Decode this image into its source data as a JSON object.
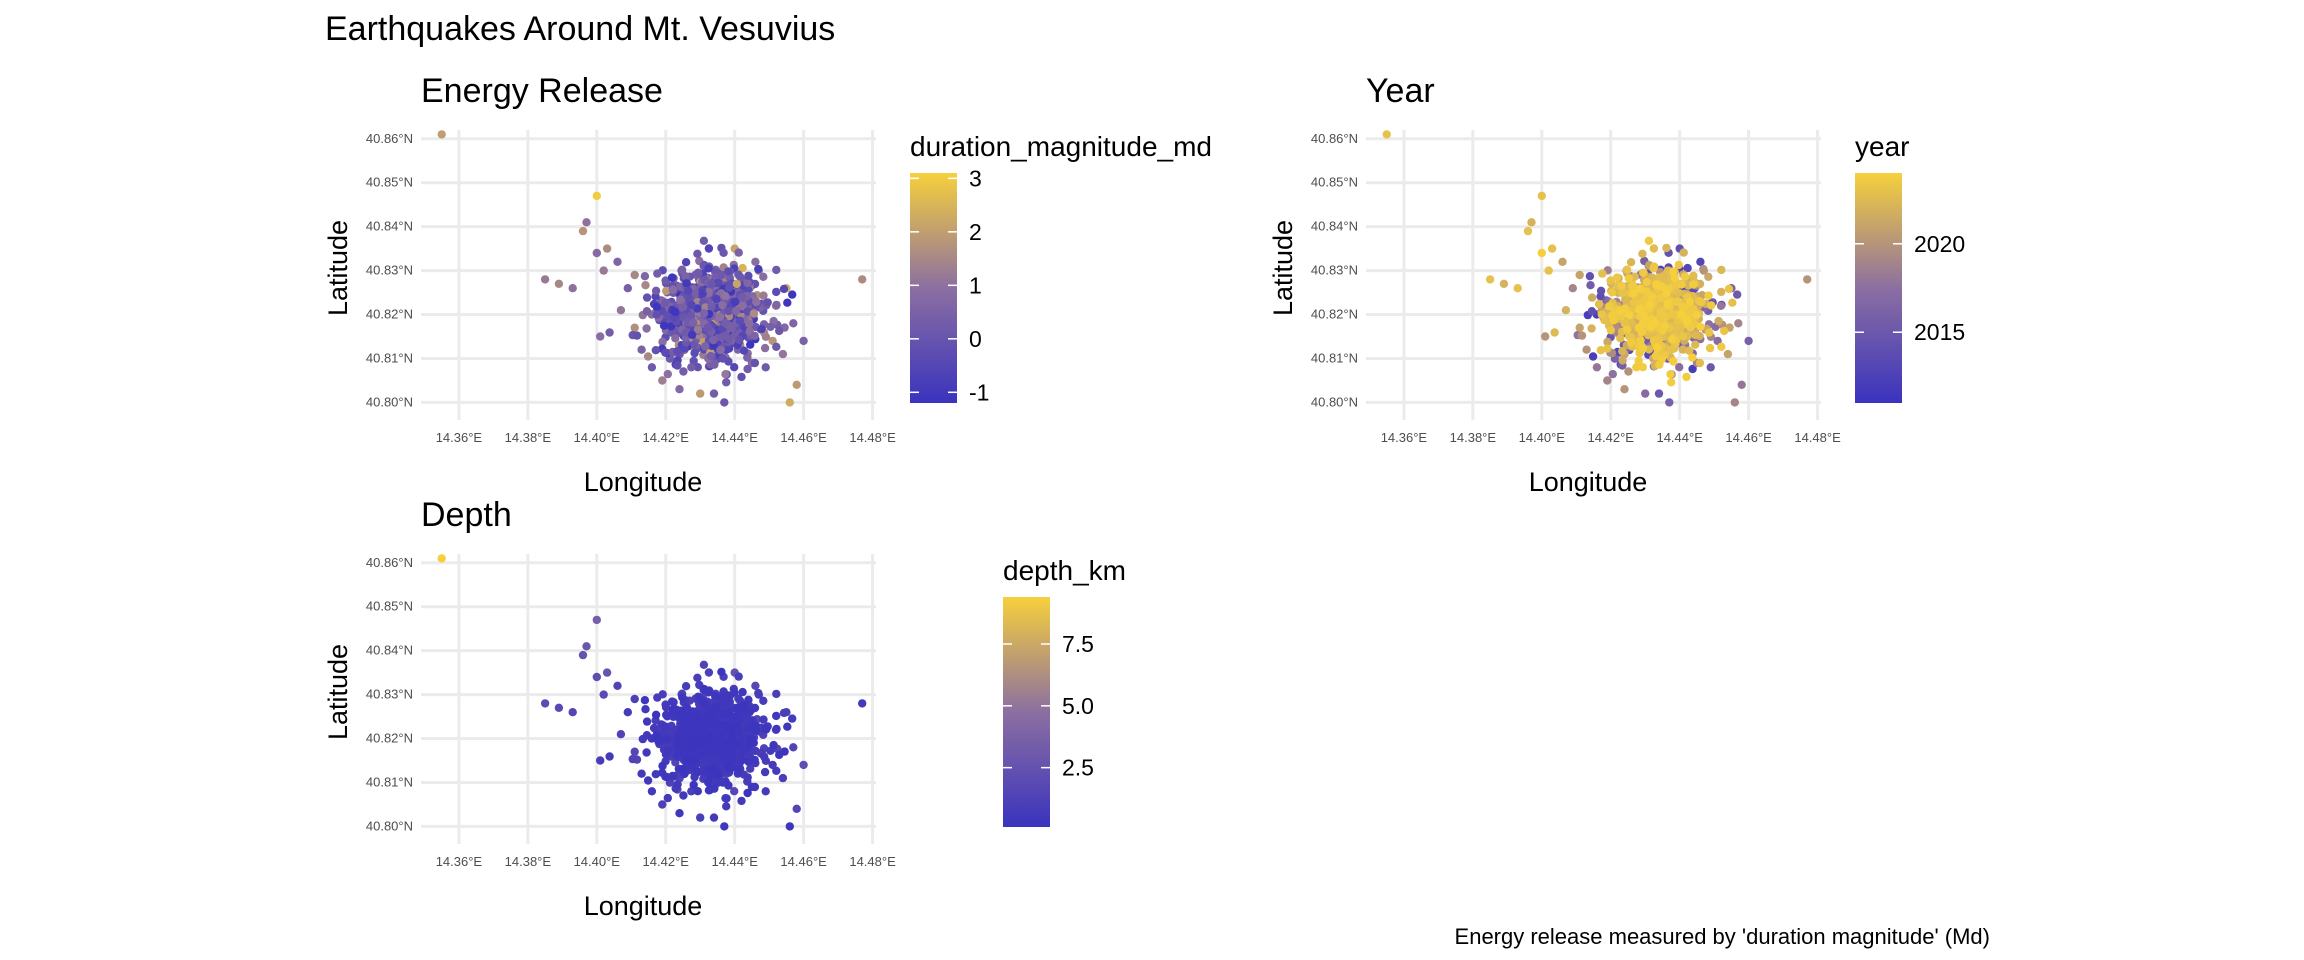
{
  "title": "Earthquakes Around Mt. Vesuvius",
  "caption": "Energy release measured by 'duration magnitude' (Md)",
  "colors": {
    "low": "#3a33be",
    "mid": "#8c6fa1",
    "high": "#f6d03c",
    "grid": "#ebebeb",
    "tick": "#4d4d4d"
  },
  "chart_data": [
    {
      "type": "scatter",
      "title": "Energy Release",
      "xlabel": "Longitude",
      "ylabel": "Latitude",
      "x_ticks": [
        "14.36°E",
        "14.38°E",
        "14.40°E",
        "14.42°E",
        "14.44°E",
        "14.46°E",
        "14.48°E"
      ],
      "y_ticks": [
        "40.80°N",
        "40.81°N",
        "40.82°N",
        "40.83°N",
        "40.84°N",
        "40.85°N",
        "40.86°N"
      ],
      "xlim": [
        14.349,
        14.481
      ],
      "ylim": [
        40.796,
        40.862
      ],
      "grid": true,
      "color_variable": "duration_magnitude_md",
      "color_range": [
        -1.2,
        3.1
      ],
      "legend": {
        "title": "duration_magnitude_md",
        "ticks": [
          -1,
          0,
          1,
          2,
          3
        ],
        "tick_labels": [
          "-1",
          "0",
          "1",
          "2",
          "3"
        ],
        "placement": "right"
      }
    },
    {
      "type": "scatter",
      "title": "Year",
      "xlabel": "Longitude",
      "ylabel": "Latitude",
      "x_ticks": [
        "14.36°E",
        "14.38°E",
        "14.40°E",
        "14.42°E",
        "14.44°E",
        "14.46°E",
        "14.48°E"
      ],
      "y_ticks": [
        "40.80°N",
        "40.81°N",
        "40.82°N",
        "40.83°N",
        "40.84°N",
        "40.85°N",
        "40.86°N"
      ],
      "xlim": [
        14.349,
        14.481
      ],
      "ylim": [
        40.796,
        40.862
      ],
      "grid": true,
      "color_variable": "year",
      "color_range": [
        2011,
        2024
      ],
      "legend": {
        "title": "year",
        "ticks": [
          2015,
          2020
        ],
        "tick_labels": [
          "2015",
          "2020"
        ],
        "placement": "right"
      }
    },
    {
      "type": "scatter",
      "title": "Depth",
      "xlabel": "Longitude",
      "ylabel": "Latitude",
      "x_ticks": [
        "14.36°E",
        "14.38°E",
        "14.40°E",
        "14.42°E",
        "14.44°E",
        "14.46°E",
        "14.48°E"
      ],
      "y_ticks": [
        "40.80°N",
        "40.81°N",
        "40.82°N",
        "40.83°N",
        "40.84°N",
        "40.85°N",
        "40.86°N"
      ],
      "xlim": [
        14.349,
        14.481
      ],
      "ylim": [
        40.796,
        40.862
      ],
      "grid": true,
      "color_variable": "depth_km",
      "color_range": [
        0.1,
        9.4
      ],
      "legend": {
        "title": "depth_km",
        "ticks": [
          2.5,
          5.0,
          7.5
        ],
        "tick_labels": [
          "2.5",
          "5.0",
          "7.5"
        ],
        "placement": "right"
      }
    }
  ],
  "points": [
    {
      "lon": 14.355,
      "lat": 40.861,
      "md": 2.0,
      "year": 2023,
      "depth": 9.4
    },
    {
      "lon": 14.4,
      "lat": 40.847,
      "md": 3.0,
      "year": 2023,
      "depth": 3.5
    },
    {
      "lon": 14.397,
      "lat": 40.841,
      "md": 1.0,
      "year": 2022,
      "depth": 2.8
    },
    {
      "lon": 14.396,
      "lat": 40.839,
      "md": 1.8,
      "year": 2023,
      "depth": 2.6
    },
    {
      "lon": 14.385,
      "lat": 40.828,
      "md": 1.2,
      "year": 2023,
      "depth": 2.0
    },
    {
      "lon": 14.389,
      "lat": 40.827,
      "md": 1.5,
      "year": 2022,
      "depth": 1.8
    },
    {
      "lon": 14.393,
      "lat": 40.826,
      "md": 1.0,
      "year": 2023,
      "depth": 1.5
    },
    {
      "lon": 14.4,
      "lat": 40.834,
      "md": 0.8,
      "year": 2024,
      "depth": 2.2
    },
    {
      "lon": 14.402,
      "lat": 40.83,
      "md": 1.2,
      "year": 2023,
      "depth": 1.9
    },
    {
      "lon": 14.403,
      "lat": 40.835,
      "md": 1.6,
      "year": 2023,
      "depth": 2.7
    },
    {
      "lon": 14.406,
      "lat": 40.832,
      "md": 0.6,
      "year": 2021,
      "depth": 1.4
    },
    {
      "lon": 14.401,
      "lat": 40.815,
      "md": 0.9,
      "year": 2020,
      "depth": 0.9
    },
    {
      "lon": 14.407,
      "lat": 40.821,
      "md": 1.1,
      "year": 2022,
      "depth": 1.3
    },
    {
      "lon": 14.409,
      "lat": 40.826,
      "md": 0.4,
      "year": 2019,
      "depth": 0.8
    },
    {
      "lon": 14.411,
      "lat": 40.817,
      "md": 1.7,
      "year": 2021,
      "depth": 1.6
    },
    {
      "lon": 14.413,
      "lat": 40.812,
      "md": 0.5,
      "year": 2020,
      "depth": 0.7
    },
    {
      "lon": 14.416,
      "lat": 40.808,
      "md": 0.2,
      "year": 2018,
      "depth": 0.6
    },
    {
      "lon": 14.419,
      "lat": 40.805,
      "md": 1.3,
      "year": 2019,
      "depth": 1.2
    },
    {
      "lon": 14.424,
      "lat": 40.803,
      "md": 0.7,
      "year": 2020,
      "depth": 0.5
    },
    {
      "lon": 14.43,
      "lat": 40.802,
      "md": 1.9,
      "year": 2017,
      "depth": 1.0
    },
    {
      "lon": 14.437,
      "lat": 40.8,
      "md": 0.1,
      "year": 2016,
      "depth": 0.4
    },
    {
      "lon": 14.434,
      "lat": 40.802,
      "md": 0.3,
      "year": 2015,
      "depth": 0.6
    },
    {
      "lon": 14.44,
      "lat": 40.835,
      "md": 2.1,
      "year": 2014,
      "depth": 2.5
    },
    {
      "lon": 14.446,
      "lat": 40.832,
      "md": 0.9,
      "year": 2013,
      "depth": 1.7
    },
    {
      "lon": 14.455,
      "lat": 40.826,
      "md": 2.4,
      "year": 2016,
      "depth": 1.1
    },
    {
      "lon": 14.452,
      "lat": 40.822,
      "md": 1.4,
      "year": 2018,
      "depth": 0.9
    },
    {
      "lon": 14.457,
      "lat": 40.818,
      "md": 0.6,
      "year": 2019,
      "depth": 1.4
    },
    {
      "lon": 14.451,
      "lat": 40.814,
      "md": 1.8,
      "year": 2017,
      "depth": 0.8
    },
    {
      "lon": 14.46,
      "lat": 40.814,
      "md": 0.5,
      "year": 2016,
      "depth": 2.3
    },
    {
      "lon": 14.454,
      "lat": 40.811,
      "md": 1.1,
      "year": 2021,
      "depth": 1.0
    },
    {
      "lon": 14.449,
      "lat": 40.808,
      "md": 0.2,
      "year": 2015,
      "depth": 0.7
    },
    {
      "lon": 14.458,
      "lat": 40.804,
      "md": 1.9,
      "year": 2018,
      "depth": 1.5
    },
    {
      "lon": 14.456,
      "lat": 40.8,
      "md": 2.3,
      "year": 2019,
      "depth": 0.3
    },
    {
      "lon": 14.477,
      "lat": 40.828,
      "md": 1.6,
      "year": 2020,
      "depth": 0.6
    },
    {
      "lon": 14.447,
      "lat": 40.83,
      "md": 1.2,
      "year": 2020,
      "depth": 0.9
    },
    {
      "lon": 14.442,
      "lat": 40.828,
      "md": 0.4,
      "year": 2022,
      "depth": 1.3
    },
    {
      "lon": 14.445,
      "lat": 40.809,
      "md": 0.8,
      "year": 2019,
      "depth": 0.5
    },
    {
      "lon": 14.411,
      "lat": 40.829,
      "md": 1.5,
      "year": 2021,
      "depth": 1.1
    }
  ]
}
